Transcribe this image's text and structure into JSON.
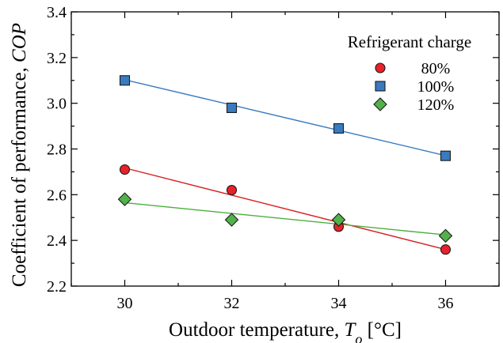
{
  "chart_data": {
    "type": "scatter",
    "x": [
      30,
      32,
      34,
      36
    ],
    "xlabel_prefix": "Outdoor temperature, ",
    "xlabel_var": "T",
    "xlabel_sub": "o",
    "xlabel_suffix": " [°C]",
    "ylabel_prefix": "Coefficient of performance, ",
    "ylabel_var": "COP",
    "xlim": [
      29,
      37
    ],
    "ylim": [
      2.2,
      3.4
    ],
    "xticks": [
      "30",
      "32",
      "34",
      "36"
    ],
    "yticks": [
      "2.2",
      "2.4",
      "2.6",
      "2.8",
      "3.0",
      "3.2",
      "3.4"
    ],
    "grid": false,
    "trendlines": true,
    "legend_position": "top-right",
    "legend_title": "Refrigerant charge",
    "series": [
      {
        "name": "80%",
        "marker": "circle",
        "color": "#e8222a",
        "line_color": "#d62020",
        "values": [
          2.71,
          2.62,
          2.46,
          2.36
        ],
        "fit": [
          2.717,
          2.36
        ]
      },
      {
        "name": "100%",
        "marker": "square",
        "color": "#3a7bbf",
        "line_color": "#3a7bbf",
        "values": [
          3.1,
          2.98,
          2.89,
          2.77
        ],
        "fit": [
          3.103,
          2.771
        ]
      },
      {
        "name": "120%",
        "marker": "diamond",
        "color": "#52b24a",
        "line_color": "#4caf3f",
        "values": [
          2.58,
          2.49,
          2.49,
          2.42
        ],
        "fit": [
          2.565,
          2.424
        ]
      }
    ]
  }
}
